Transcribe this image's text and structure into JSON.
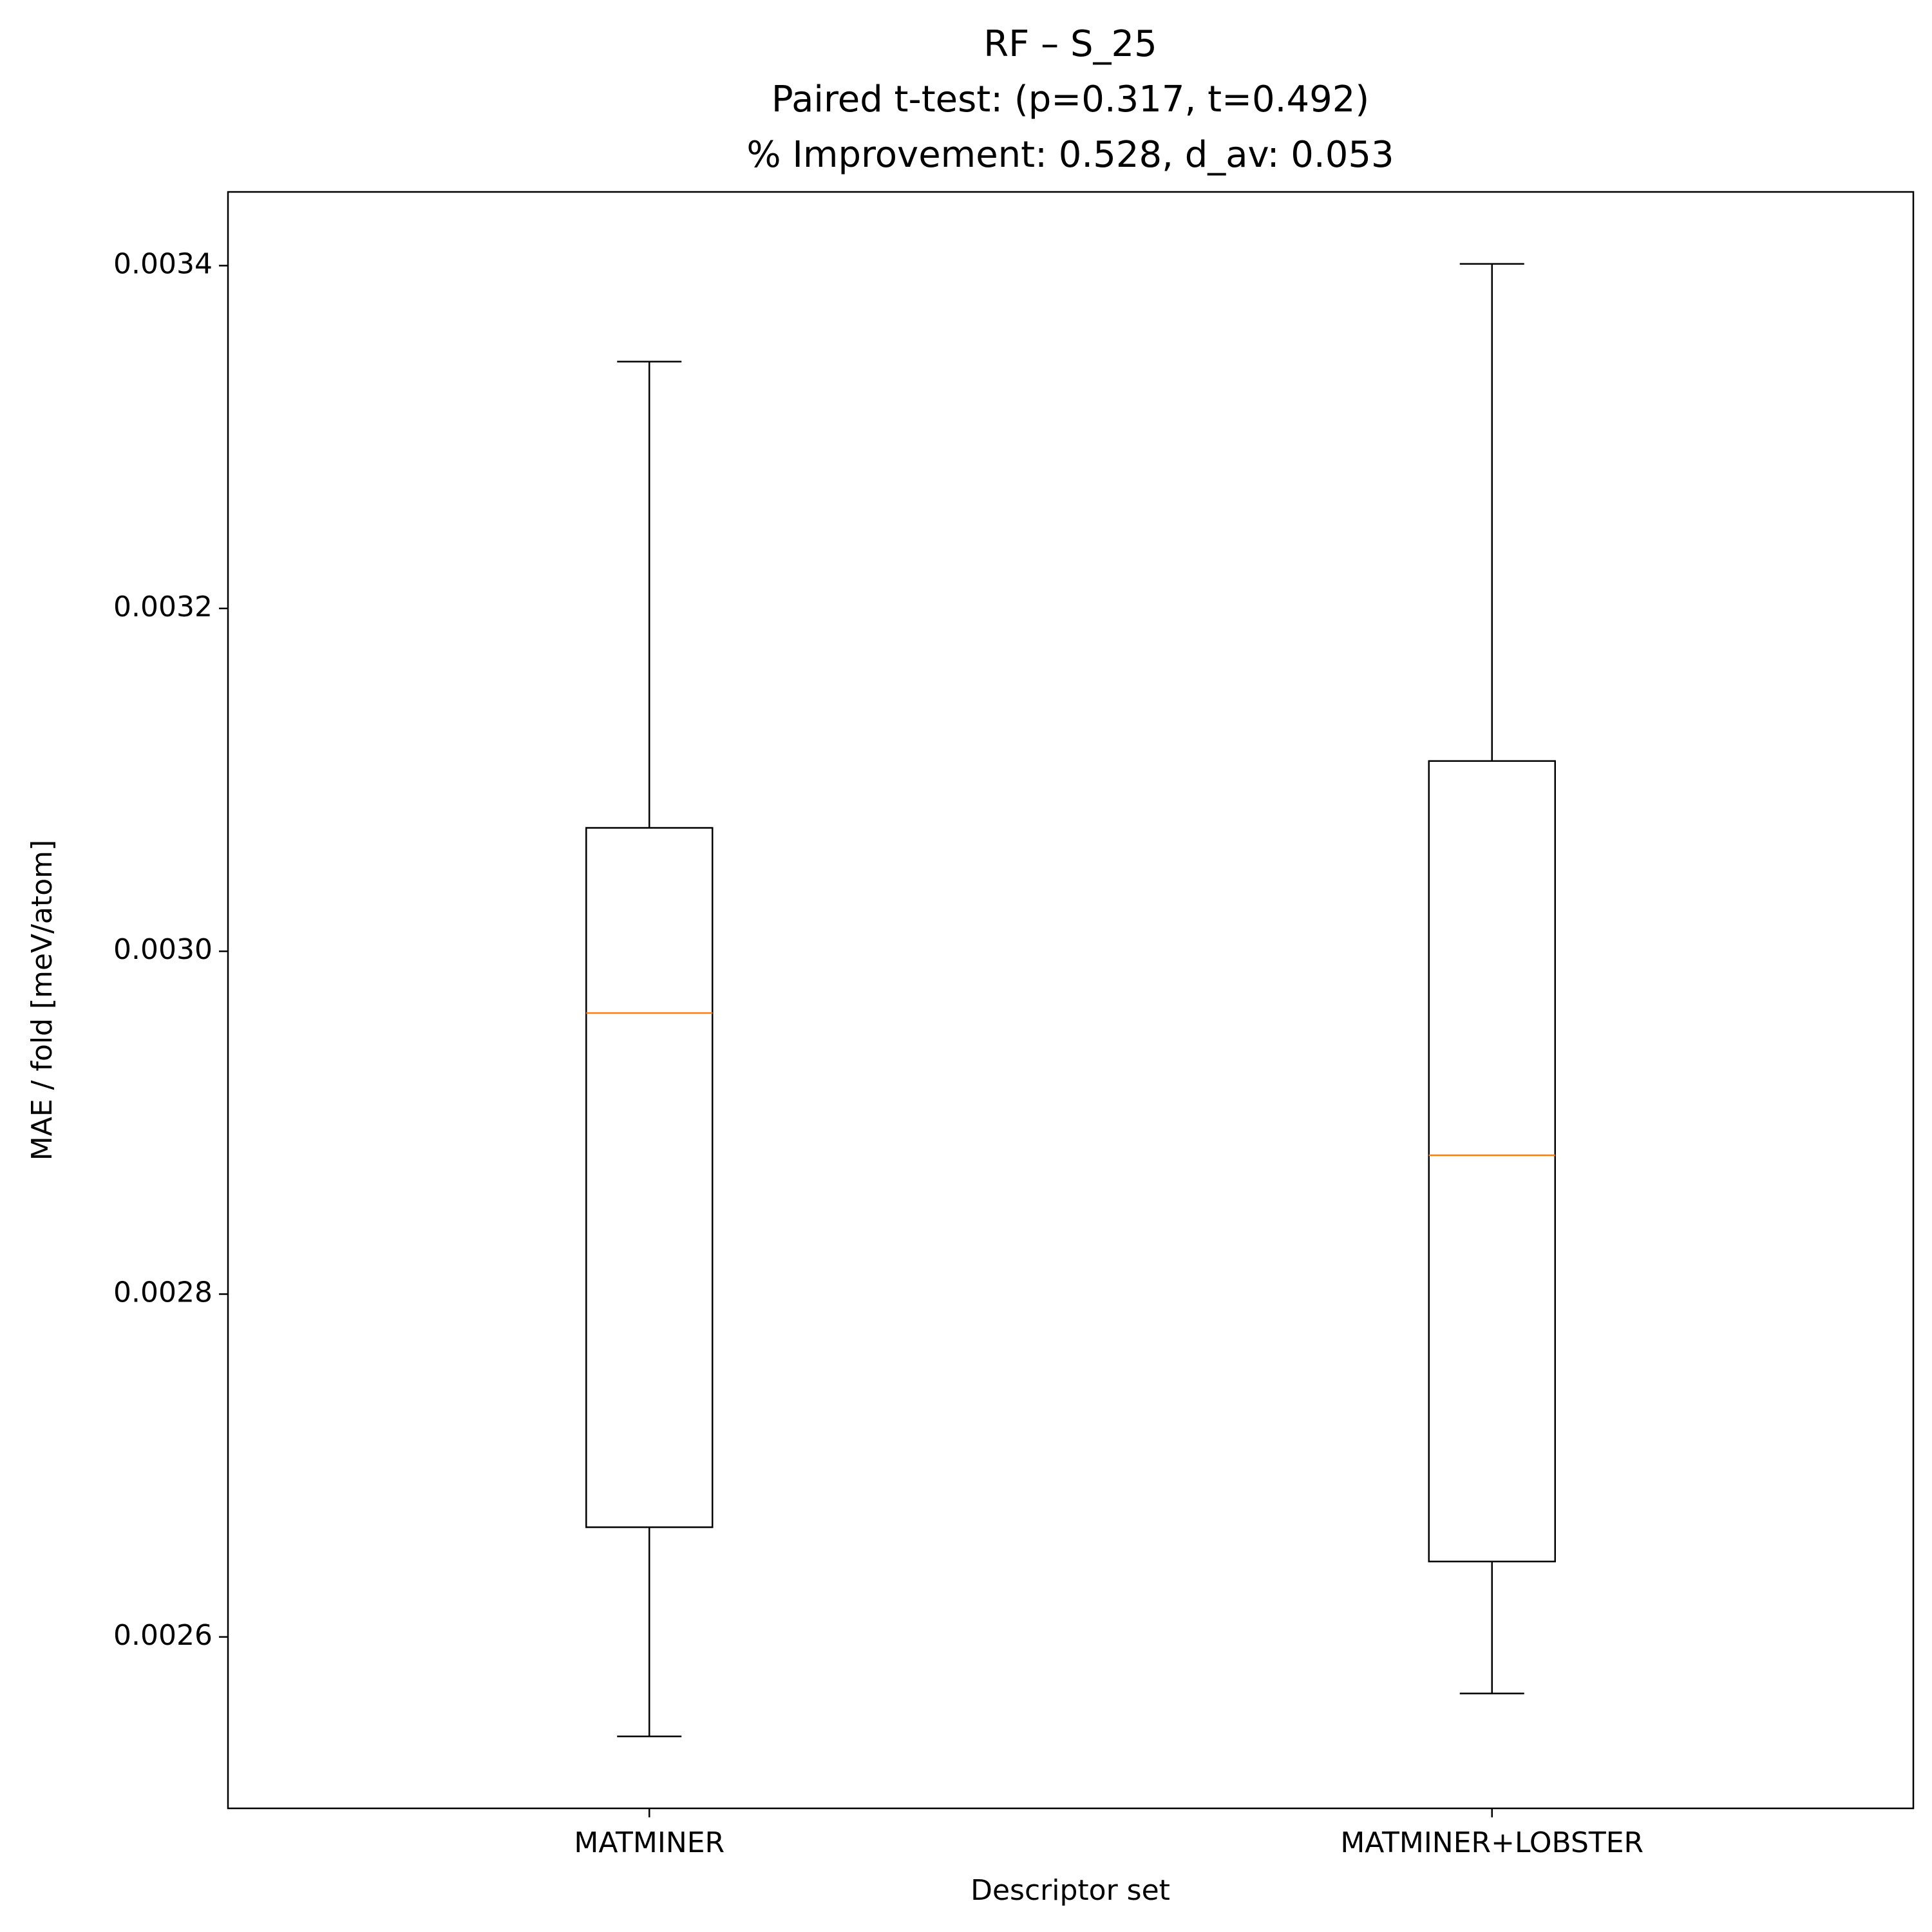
{
  "chart_data": {
    "type": "box",
    "title": [
      "RF – S_25",
      "Paired t-test: (p=0.317, t=0.492)",
      "% Improvement: 0.528, d_av: 0.053"
    ],
    "xlabel": "Descriptor set",
    "ylabel": "MAE / fold [meV/atom]",
    "categories": [
      "MATMINER",
      "MATMINER+LOBSTER"
    ],
    "boxes": [
      {
        "whislo": 0.002542,
        "q1": 0.002664,
        "med": 0.002964,
        "q3": 0.003072,
        "whishi": 0.003344
      },
      {
        "whislo": 0.002567,
        "q1": 0.002644,
        "med": 0.002881,
        "q3": 0.003111,
        "whishi": 0.003401
      }
    ],
    "color": "#000000",
    "median_color": "#ff7f0e",
    "ylim": [
      0.0025,
      0.003443
    ],
    "yticks": [
      0.0026,
      0.0028,
      {
        "value": 0.003,
        "label": "0.0030"
      },
      0.0032,
      0.0034
    ],
    "grid": false
  }
}
